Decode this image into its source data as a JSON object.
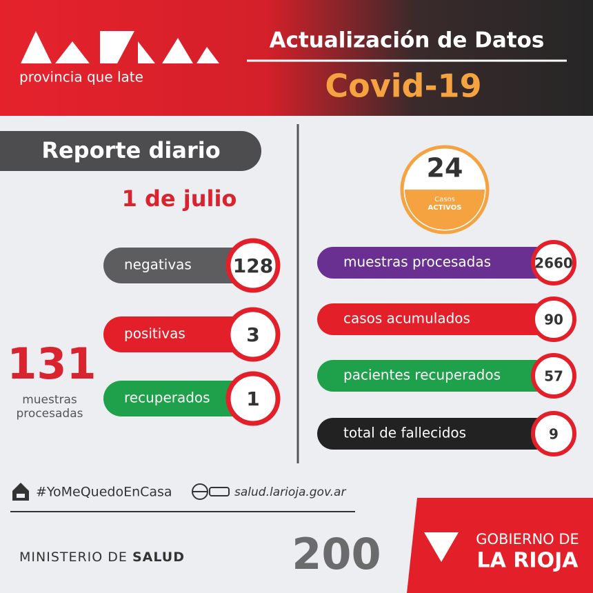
{
  "header": {
    "logo_tagline": "provincia que late",
    "title": "Actualización de Datos",
    "subtitle": "Covid-19"
  },
  "report": {
    "label": "Reporte diario",
    "date": "1 de julio"
  },
  "active": {
    "value": "24",
    "label_line1": "Casos",
    "label_line2": "ACTIVOS"
  },
  "daily": [
    {
      "label": "negativas",
      "value": "128"
    },
    {
      "label": "positivas",
      "value": "3"
    },
    {
      "label": "recuperados",
      "value": "1"
    }
  ],
  "daily_total": {
    "value": "131",
    "label_line1": "muestras",
    "label_line2": "procesadas"
  },
  "cumulative": [
    {
      "label": "muestras procesadas",
      "value": "2660"
    },
    {
      "label": "casos acumulados",
      "value": "90"
    },
    {
      "label": "pacientes recuperados",
      "value": "57"
    },
    {
      "label": "total de fallecidos",
      "value": "9"
    }
  ],
  "footer": {
    "hashtag": "#YoMeQuedoEnCasa",
    "website": "salud.larioja.gov.ar",
    "ministry_regular": "MINISTERIO DE ",
    "ministry_bold": "SALUD",
    "anniversary": "200",
    "government_line1": "GOBIERNO DE",
    "government_line2": "LA RIOJA"
  }
}
